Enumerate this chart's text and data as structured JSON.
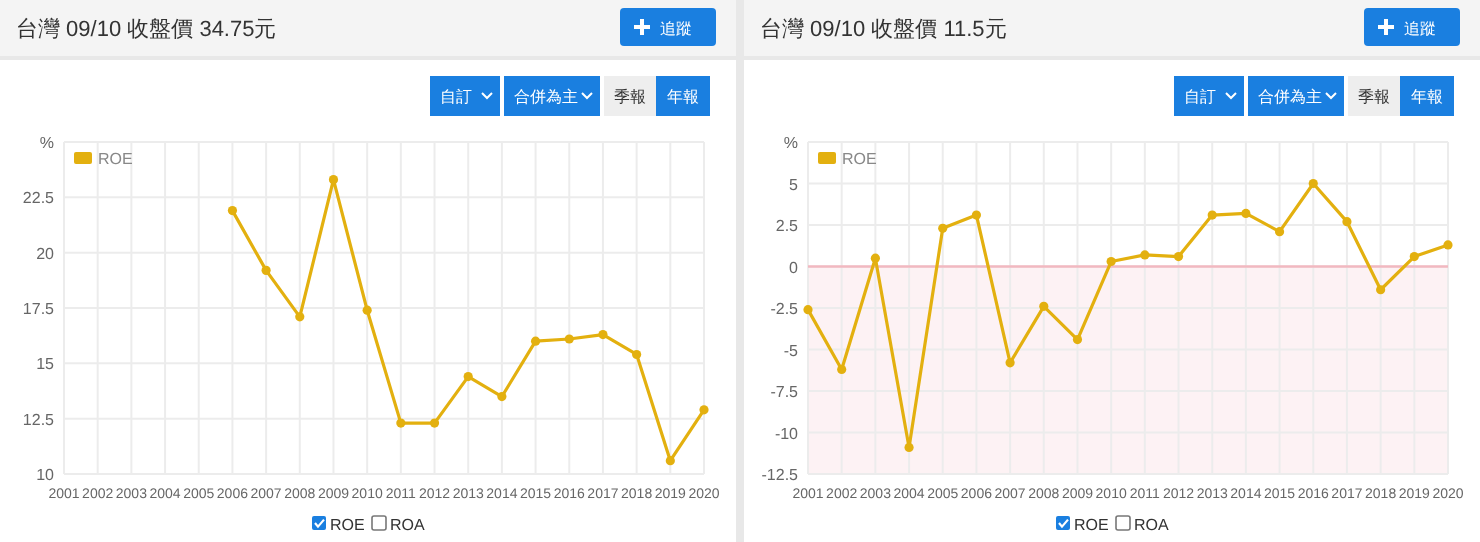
{
  "chart_data": [
    {
      "type": "line",
      "title": "台灣 09/10 收盤價 34.75元",
      "annotations": [
        "追蹤",
        "自訂",
        "合併為主",
        "季報",
        "年報",
        "ROE",
        "ROA"
      ],
      "categories": [
        "2001",
        "2002",
        "2003",
        "2004",
        "2005",
        "2006",
        "2007",
        "2008",
        "2009",
        "2010",
        "2011",
        "2012",
        "2013",
        "2014",
        "2015",
        "2016",
        "2017",
        "2018",
        "2019",
        "2020"
      ],
      "series": [
        {
          "name": "ROE",
          "color": "#e3b00f",
          "values": [
            null,
            null,
            null,
            null,
            null,
            21.9,
            19.2,
            17.1,
            23.3,
            17.4,
            12.3,
            12.3,
            14.4,
            13.5,
            16.0,
            16.1,
            16.3,
            15.4,
            10.6,
            12.9
          ]
        }
      ],
      "ylim": [
        10,
        25
      ],
      "yticks": [
        10,
        12.5,
        15,
        17.5,
        20,
        22.5,
        {
          "value": 25,
          "label": "%"
        }
      ],
      "grid": true,
      "legend": "top left",
      "marker": "circle",
      "line_style": "solid"
    },
    {
      "type": "line",
      "title": "台灣 09/10 收盤價 11.5元",
      "annotations": [
        "追蹤",
        "自訂",
        "合併為主",
        "季報",
        "年報",
        "ROE",
        "ROA"
      ],
      "categories": [
        "2001",
        "2002",
        "2003",
        "2004",
        "2005",
        "2006",
        "2007",
        "2008",
        "2009",
        "2010",
        "2011",
        "2012",
        "2013",
        "2014",
        "2015",
        "2016",
        "2017",
        "2018",
        "2019",
        "2020"
      ],
      "series": [
        {
          "name": "ROE",
          "color": "#e3b00f",
          "values": [
            -2.6,
            -6.2,
            0.5,
            -10.9,
            2.3,
            3.1,
            -5.8,
            -2.4,
            -4.4,
            0.3,
            0.7,
            0.6,
            3.1,
            3.2,
            2.1,
            5.0,
            2.7,
            -1.4,
            0.6,
            1.3
          ]
        }
      ],
      "ylim": [
        -12.5,
        7.5
      ],
      "yticks": [
        -12.5,
        -10,
        -7.5,
        -5,
        -2.5,
        0,
        2.5,
        5,
        {
          "value": 7.5,
          "label": "%"
        }
      ],
      "grid": true,
      "legend": "top left",
      "marker": "circle",
      "line_style": "solid",
      "ref_lines": [
        {
          "axis": "y",
          "value": 0,
          "color": "#f2b8c0"
        }
      ],
      "bands": [
        {
          "axis": "y",
          "from": -12.5,
          "to": 0,
          "color": "#fdf2f4"
        }
      ]
    }
  ]
}
